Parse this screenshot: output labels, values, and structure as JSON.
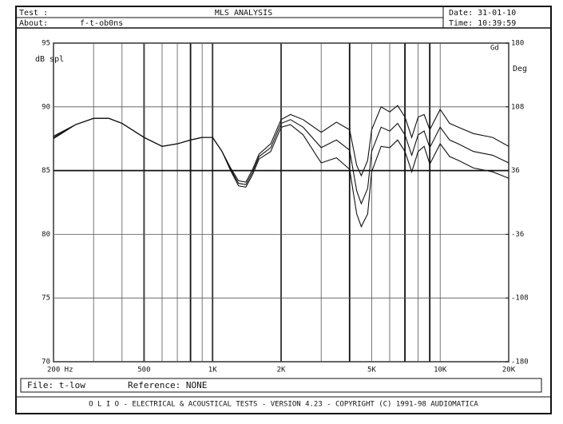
{
  "header": {
    "test_label": "Test :",
    "title": "MLS ANALYSIS",
    "date": "Date: 31-01-10",
    "about_label": "About:",
    "about": "f-t-ob0ns",
    "time": "Time: 10:39:59"
  },
  "footer": {
    "file": "File: t-low",
    "reference": "Reference: NONE",
    "copyright": "O L I O  -  ELECTRICAL & ACOUSTICAL TESTS  -  VERSION 4.23  -  COPYRIGHT (C) 1991-98 AUDIOMATICA"
  },
  "chart_data": {
    "type": "line",
    "y_label": "dB spl",
    "y2_label": "Deg",
    "y2_badge": "Gd",
    "x_log": true,
    "x": [
      200,
      250,
      300,
      350,
      400,
      500,
      600,
      700,
      800,
      900,
      1000,
      1100,
      1200,
      1300,
      1400,
      1500,
      1600,
      1800,
      2000,
      2200,
      2500,
      3000,
      3500,
      4000,
      4300,
      4500,
      4800,
      5000,
      5500,
      6000,
      6500,
      7000,
      7500,
      8000,
      8500,
      9000,
      10000,
      11000,
      12000,
      14000,
      17000,
      20000
    ],
    "series": [
      {
        "name": "upper",
        "color": "#111",
        "values": [
          87.7,
          88.6,
          89.1,
          89.1,
          88.7,
          87.6,
          86.9,
          87.1,
          87.4,
          87.6,
          87.6,
          86.5,
          85.2,
          84.2,
          84.1,
          85.1,
          86.3,
          87.1,
          89.0,
          89.4,
          89.0,
          88.0,
          88.8,
          88.2,
          85.4,
          84.6,
          85.8,
          88.2,
          90.0,
          89.6,
          90.1,
          89.2,
          87.6,
          89.2,
          89.4,
          88.2,
          89.8,
          88.7,
          88.4,
          87.9,
          87.6,
          86.9
        ]
      },
      {
        "name": "response",
        "color": "#111",
        "values": [
          87.6,
          88.6,
          89.1,
          89.1,
          88.7,
          87.6,
          86.9,
          87.1,
          87.4,
          87.6,
          87.6,
          86.5,
          85.1,
          84.0,
          83.9,
          84.9,
          86.1,
          86.8,
          88.7,
          89.0,
          88.4,
          86.8,
          87.4,
          86.6,
          83.4,
          82.4,
          83.6,
          86.5,
          88.4,
          88.1,
          88.7,
          87.8,
          86.2,
          87.8,
          88.1,
          86.8,
          88.4,
          87.4,
          87.1,
          86.5,
          86.2,
          85.6
        ]
      },
      {
        "name": "lower",
        "color": "#111",
        "values": [
          87.5,
          88.6,
          89.1,
          89.1,
          88.7,
          87.6,
          86.9,
          87.1,
          87.4,
          87.6,
          87.6,
          86.5,
          85.0,
          83.8,
          83.7,
          84.7,
          85.9,
          86.5,
          88.4,
          88.6,
          87.8,
          85.6,
          86.0,
          85.1,
          81.6,
          80.6,
          81.6,
          84.9,
          86.9,
          86.8,
          87.4,
          86.5,
          84.9,
          86.5,
          86.9,
          85.5,
          87.1,
          86.1,
          85.8,
          85.2,
          84.9,
          84.4
        ]
      }
    ],
    "xlim": [
      200,
      20000
    ],
    "xticks": [
      {
        "value": 200,
        "label": "200  Hz"
      },
      {
        "value": 500,
        "label": "500"
      },
      {
        "value": 1000,
        "label": "1K"
      },
      {
        "value": 2000,
        "label": "2K"
      },
      {
        "value": 5000,
        "label": "5K"
      },
      {
        "value": 10000,
        "label": "10K"
      },
      {
        "value": 20000,
        "label": "20K"
      }
    ],
    "xgrid": [
      300,
      400,
      600,
      700,
      800,
      900,
      3000,
      4000,
      6000,
      7000,
      8000,
      9000
    ],
    "xgrid_bold": [
      500,
      800,
      1000,
      2000,
      4000,
      7000,
      9000
    ],
    "ylim": [
      70,
      95
    ],
    "yticks": [
      70,
      75,
      80,
      85,
      90,
      95
    ],
    "y2lim": [
      -180,
      180
    ],
    "y2ticks": [
      -180,
      -108,
      -36,
      36,
      108,
      180
    ],
    "ygrid_bold": [
      85
    ],
    "grid": true
  }
}
